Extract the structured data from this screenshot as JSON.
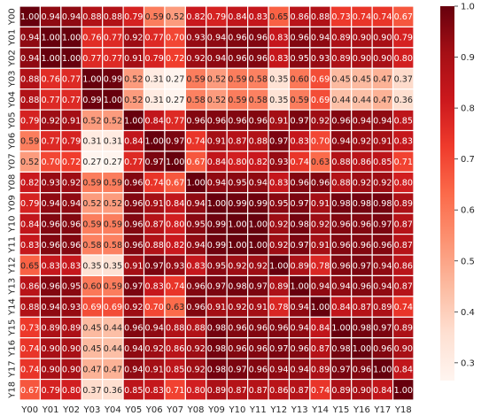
{
  "chart_data": {
    "type": "heatmap",
    "title": "",
    "xlabel": "",
    "ylabel": "",
    "labels": [
      "Y00",
      "Y01",
      "Y02",
      "Y03",
      "Y04",
      "Y05",
      "Y06",
      "Y07",
      "Y08",
      "Y09",
      "Y10",
      "Y11",
      "Y12",
      "Y13",
      "Y14",
      "Y15",
      "Y16",
      "Y17",
      "Y18"
    ],
    "matrix": [
      [
        1.0,
        0.94,
        0.94,
        0.88,
        0.88,
        0.79,
        0.59,
        0.52,
        0.82,
        0.79,
        0.84,
        0.83,
        0.65,
        0.86,
        0.88,
        0.73,
        0.74,
        0.74,
        0.67
      ],
      [
        0.94,
        1.0,
        1.0,
        0.76,
        0.77,
        0.92,
        0.77,
        0.7,
        0.93,
        0.94,
        0.96,
        0.96,
        0.83,
        0.96,
        0.94,
        0.89,
        0.9,
        0.9,
        0.79
      ],
      [
        0.94,
        1.0,
        1.0,
        0.77,
        0.77,
        0.91,
        0.79,
        0.72,
        0.92,
        0.94,
        0.96,
        0.96,
        0.83,
        0.95,
        0.93,
        0.89,
        0.9,
        0.9,
        0.8
      ],
      [
        0.88,
        0.76,
        0.77,
        1.0,
        0.99,
        0.52,
        0.31,
        0.27,
        0.59,
        0.52,
        0.59,
        0.58,
        0.35,
        0.6,
        0.69,
        0.45,
        0.45,
        0.47,
        0.37
      ],
      [
        0.88,
        0.77,
        0.77,
        0.99,
        1.0,
        0.52,
        0.31,
        0.27,
        0.58,
        0.52,
        0.59,
        0.58,
        0.35,
        0.59,
        0.69,
        0.44,
        0.44,
        0.47,
        0.36
      ],
      [
        0.79,
        0.92,
        0.91,
        0.52,
        0.52,
        1.0,
        0.84,
        0.77,
        0.96,
        0.96,
        0.96,
        0.96,
        0.91,
        0.97,
        0.92,
        0.96,
        0.94,
        0.94,
        0.85
      ],
      [
        0.59,
        0.77,
        0.79,
        0.31,
        0.31,
        0.84,
        1.0,
        0.97,
        0.74,
        0.91,
        0.87,
        0.88,
        0.97,
        0.83,
        0.7,
        0.94,
        0.92,
        0.91,
        0.83
      ],
      [
        0.52,
        0.7,
        0.72,
        0.27,
        0.27,
        0.77,
        0.97,
        1.0,
        0.67,
        0.84,
        0.8,
        0.82,
        0.93,
        0.74,
        0.63,
        0.88,
        0.86,
        0.85,
        0.71
      ],
      [
        0.82,
        0.93,
        0.92,
        0.59,
        0.59,
        0.96,
        0.74,
        0.67,
        1.0,
        0.94,
        0.95,
        0.94,
        0.83,
        0.96,
        0.96,
        0.88,
        0.92,
        0.92,
        0.8
      ],
      [
        0.79,
        0.94,
        0.94,
        0.52,
        0.52,
        0.96,
        0.91,
        0.84,
        0.94,
        1.0,
        0.99,
        0.99,
        0.95,
        0.97,
        0.91,
        0.98,
        0.98,
        0.98,
        0.89
      ],
      [
        0.84,
        0.96,
        0.96,
        0.59,
        0.59,
        0.96,
        0.87,
        0.8,
        0.95,
        0.99,
        1.0,
        1.0,
        0.92,
        0.98,
        0.92,
        0.96,
        0.96,
        0.97,
        0.87
      ],
      [
        0.83,
        0.96,
        0.96,
        0.58,
        0.58,
        0.96,
        0.88,
        0.82,
        0.94,
        0.99,
        1.0,
        1.0,
        0.92,
        0.97,
        0.91,
        0.96,
        0.96,
        0.96,
        0.87
      ],
      [
        0.65,
        0.83,
        0.83,
        0.35,
        0.35,
        0.91,
        0.97,
        0.93,
        0.83,
        0.95,
        0.92,
        0.92,
        1.0,
        0.89,
        0.78,
        0.96,
        0.97,
        0.94,
        0.86
      ],
      [
        0.86,
        0.96,
        0.95,
        0.6,
        0.59,
        0.97,
        0.83,
        0.74,
        0.96,
        0.97,
        0.98,
        0.97,
        0.89,
        1.0,
        0.94,
        0.94,
        0.96,
        0.94,
        0.87
      ],
      [
        0.88,
        0.94,
        0.93,
        0.69,
        0.69,
        0.92,
        0.7,
        0.63,
        0.96,
        0.91,
        0.92,
        0.91,
        0.78,
        0.94,
        1.0,
        0.84,
        0.87,
        0.89,
        0.74
      ],
      [
        0.73,
        0.89,
        0.89,
        0.45,
        0.44,
        0.96,
        0.94,
        0.88,
        0.88,
        0.98,
        0.96,
        0.96,
        0.96,
        0.94,
        0.84,
        1.0,
        0.98,
        0.97,
        0.89
      ],
      [
        0.74,
        0.9,
        0.9,
        0.45,
        0.44,
        0.94,
        0.92,
        0.86,
        0.92,
        0.98,
        0.96,
        0.96,
        0.97,
        0.96,
        0.87,
        0.98,
        1.0,
        0.96,
        0.9
      ],
      [
        0.74,
        0.9,
        0.9,
        0.47,
        0.47,
        0.94,
        0.91,
        0.85,
        0.92,
        0.98,
        0.97,
        0.96,
        0.94,
        0.94,
        0.89,
        0.97,
        0.96,
        1.0,
        0.84
      ],
      [
        0.67,
        0.79,
        0.8,
        0.37,
        0.36,
        0.85,
        0.83,
        0.71,
        0.8,
        0.89,
        0.87,
        0.87,
        0.86,
        0.87,
        0.74,
        0.89,
        0.9,
        0.84,
        1.0
      ]
    ],
    "value_range": [
      0.265,
      1.0
    ],
    "colormap": "Reds",
    "colorbar_ticks": [
      "0.3",
      "0.4",
      "0.5",
      "0.6",
      "0.7",
      "0.8",
      "0.9",
      "1.0"
    ],
    "cell_border_color": "#ffffff",
    "text_color_light": "#ffffff",
    "text_color_dark": "#262626"
  }
}
